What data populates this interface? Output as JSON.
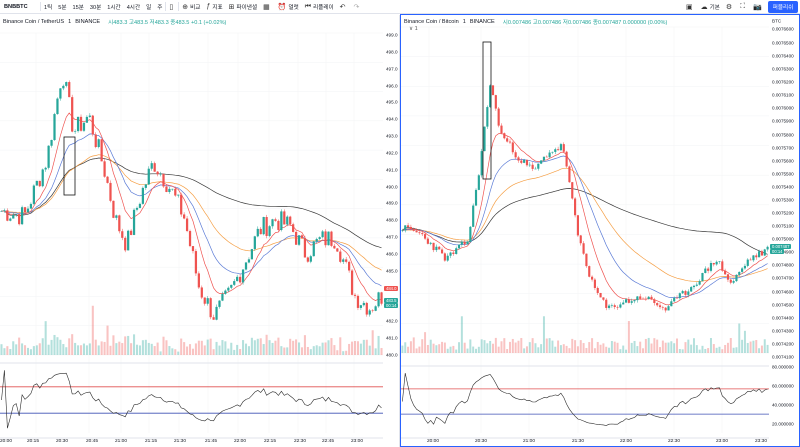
{
  "toolbar": {
    "symbol": "BNBBTC",
    "intervals": [
      "1틱",
      "5분",
      "15분",
      "30분",
      "1시간",
      "4시간",
      "일",
      "주"
    ],
    "compare": "비교",
    "indicators": "지표",
    "financials": "파이낸셜",
    "alerts": "얼럿",
    "replay": "리플레이",
    "layout": "기본",
    "publish": "퍼블리쉬"
  },
  "left": {
    "title": "Binance Coin / TetherUS",
    "interval": "1",
    "exchange": "BINANCE",
    "ohlc": "시483.3 고483.5 저483.3 종483.5 +0.1 (+0.02%)",
    "price_ticks": [
      "499.0",
      "498.0",
      "497.0",
      "496.0",
      "495.0",
      "494.0",
      "493.0",
      "492.0",
      "491.0",
      "490.0",
      "489.0",
      "488.0",
      "487.0",
      "486.0",
      "485.0",
      "484.0",
      "483.0",
      "482.0",
      "481.0",
      "480.0"
    ],
    "last_tag": "484.0",
    "cur_tag": "483.5",
    "cur_tag2": "00:14",
    "time_ticks": [
      "20:00",
      "20:15",
      "20:30",
      "20:45",
      "21:00",
      "21:15",
      "21:30",
      "21:45",
      "22:00",
      "22:15",
      "22:30",
      "22:45",
      "23:00"
    ],
    "rsi_levels": [
      70,
      30
    ],
    "colors": {
      "up": "#26a69a",
      "down": "#ef5350",
      "ema_fast": "#ef5350",
      "ema_mid": "#f59f45",
      "ema_slow": "#5b7bd6",
      "sma": "#3a3a3a",
      "rsi": "#2b2b2b",
      "rsi_hi": "#e05050",
      "rsi_lo": "#3f51b5"
    }
  },
  "right": {
    "title": "Binance Coin / Bitcoin",
    "interval": "1",
    "exchange": "BINANCE",
    "ohlc": "시0.007486 고0.007486 저0.007486 종0.007487 0.000000 (0.00%)",
    "sub": "∨ 1",
    "currency": "BTC",
    "price_ticks": [
      "0.0076400",
      "0.0076300",
      "0.0076200",
      "0.0076100",
      "0.0076000",
      "0.0075900",
      "0.0075800",
      "0.0075700",
      "0.0075600",
      "0.0075500",
      "0.0075400",
      "0.0075300",
      "0.0075200",
      "0.0075100",
      "0.0075000",
      "0.0074900",
      "0.0074800",
      "0.0074700",
      "0.0074600",
      "0.0074500",
      "0.0074400",
      "0.0074300",
      "0.0074200",
      "0.0074100"
    ],
    "top_tick": "0.0076600",
    "top_tick2": "0.0076500",
    "cur_tag": "0.007487",
    "cur_tag2": "00:14",
    "last_tag": "0.0074500",
    "time_ticks": [
      "20:00",
      "20:30",
      "21:00",
      "21:30",
      "22:00",
      "22:30",
      "23:00",
      "23:30"
    ],
    "rsi_ticks": [
      "80.000000",
      "60.000000",
      "40.000000",
      "20.000000"
    ]
  }
}
